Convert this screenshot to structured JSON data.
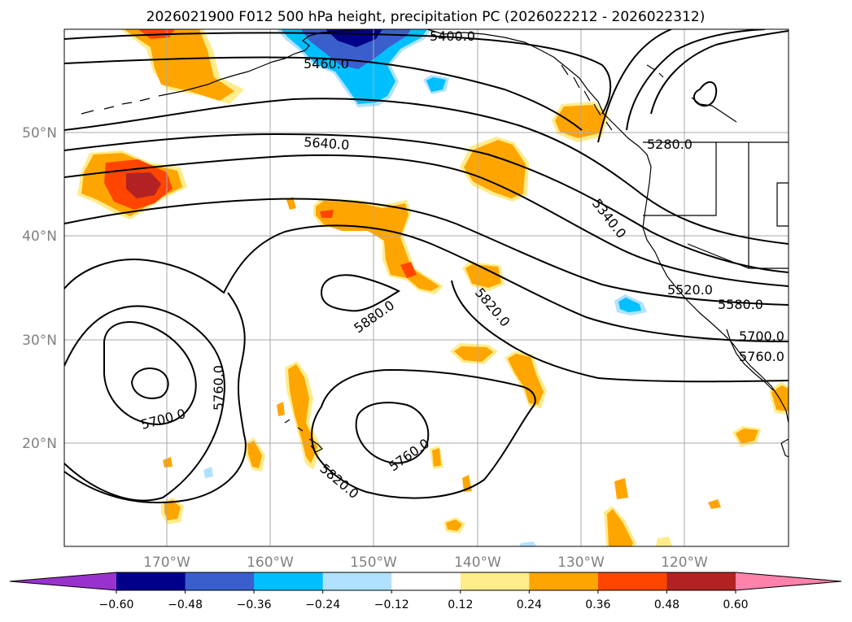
{
  "title": "2026021900 F012 500 hPa height, precipitation PC (2026022212 - 2026022312)",
  "axes": {
    "lat_labels": [
      "50°N",
      "40°N",
      "30°N",
      "20°N"
    ],
    "lon_labels": [
      "170°W",
      "160°W",
      "150°W",
      "140°W",
      "130°W",
      "120°W"
    ]
  },
  "contour_labels": [
    "5400.0",
    "5460.0",
    "5280.0",
    "5640.0",
    "5340.0",
    "5520.0",
    "5580.0",
    "5820.0",
    "5880.0",
    "5700.0",
    "5760.0",
    "5700.0",
    "5760.0",
    "5760.0",
    "5820.0"
  ],
  "colorbar": {
    "ticks": [
      "−0.60",
      "−0.48",
      "−0.36",
      "−0.24",
      "−0.12",
      "0.12",
      "0.24",
      "0.36",
      "0.48",
      "0.60"
    ],
    "colors": [
      "#9932cc",
      "#00008b",
      "#3a5fcd",
      "#00bfff",
      "#b0e2ff",
      "#ffffff",
      "#ffec8b",
      "#ffa500",
      "#ff4500",
      "#b22222",
      "#ff82ab"
    ]
  },
  "colors": {
    "contour": "#000000",
    "grid": "#a9a9a9",
    "coast": "#000000"
  }
}
